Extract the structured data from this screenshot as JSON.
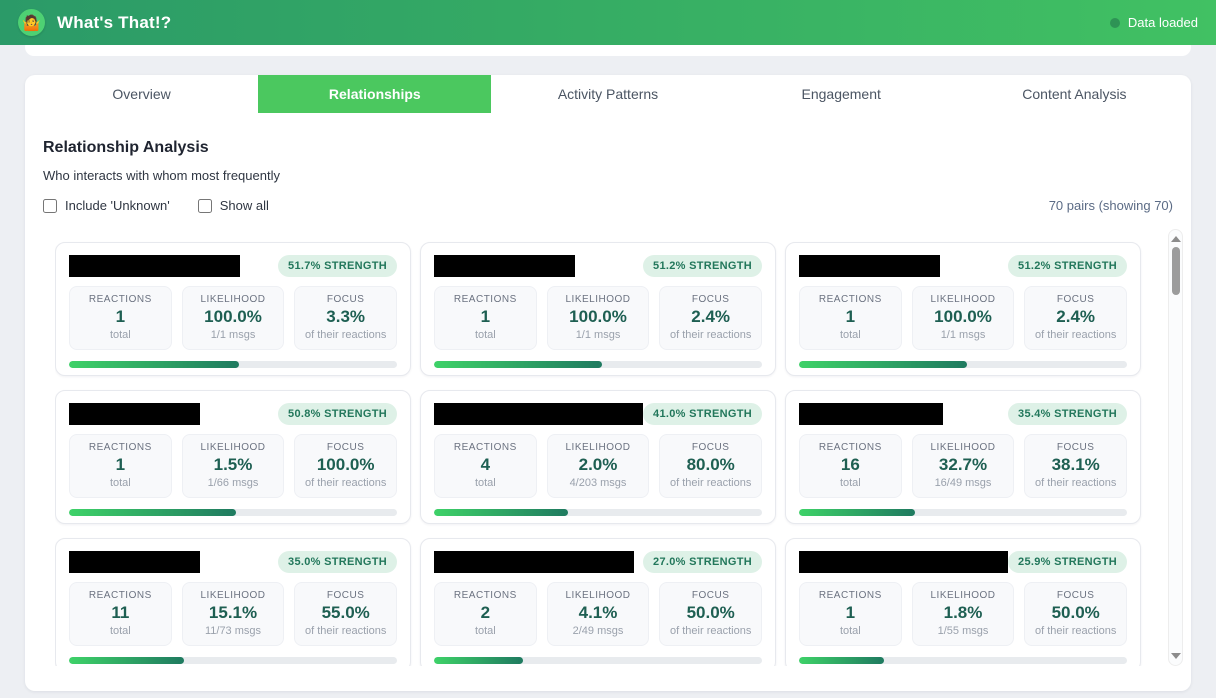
{
  "header": {
    "title": "What's That!?",
    "logo_emoji": "🤷",
    "status": "Data loaded"
  },
  "tabs": [
    {
      "label": "Overview"
    },
    {
      "label": "Relationships",
      "active": true
    },
    {
      "label": "Activity Patterns"
    },
    {
      "label": "Engagement"
    },
    {
      "label": "Content Analysis"
    }
  ],
  "section": {
    "title": "Relationship Analysis",
    "subtitle": "Who interacts with whom most frequently",
    "checkbox_unknown_label": "Include 'Unknown'",
    "checkbox_show_all_label": "Show all",
    "pair_count": "70 pairs (showing 70)"
  },
  "stat_labels": {
    "reactions": "REACTIONS",
    "likelihood": "LIKELIHOOD",
    "focus": "FOCUS"
  },
  "cards": [
    {
      "strength_label": "51.7% STRENGTH",
      "strength_pct": 51.7,
      "name_width_pct": 52,
      "reactions_value": "1",
      "reactions_sub": "total",
      "likelihood_value": "100.0%",
      "likelihood_sub": "1/1 msgs",
      "focus_value": "3.3%",
      "focus_sub": "of their reactions"
    },
    {
      "strength_label": "51.2% STRENGTH",
      "strength_pct": 51.2,
      "name_width_pct": 43,
      "reactions_value": "1",
      "reactions_sub": "total",
      "likelihood_value": "100.0%",
      "likelihood_sub": "1/1 msgs",
      "focus_value": "2.4%",
      "focus_sub": "of their reactions"
    },
    {
      "strength_label": "51.2% STRENGTH",
      "strength_pct": 51.2,
      "name_width_pct": 43,
      "reactions_value": "1",
      "reactions_sub": "total",
      "likelihood_value": "100.0%",
      "likelihood_sub": "1/1 msgs",
      "focus_value": "2.4%",
      "focus_sub": "of their reactions"
    },
    {
      "strength_label": "50.8% STRENGTH",
      "strength_pct": 50.8,
      "name_width_pct": 40,
      "reactions_value": "1",
      "reactions_sub": "total",
      "likelihood_value": "1.5%",
      "likelihood_sub": "1/66 msgs",
      "focus_value": "100.0%",
      "focus_sub": "of their reactions"
    },
    {
      "strength_label": "41.0% STRENGTH",
      "strength_pct": 41.0,
      "name_width_pct": 67,
      "reactions_value": "4",
      "reactions_sub": "total",
      "likelihood_value": "2.0%",
      "likelihood_sub": "4/203 msgs",
      "focus_value": "80.0%",
      "focus_sub": "of their reactions"
    },
    {
      "strength_label": "35.4% STRENGTH",
      "strength_pct": 35.4,
      "name_width_pct": 44,
      "reactions_value": "16",
      "reactions_sub": "total",
      "likelihood_value": "32.7%",
      "likelihood_sub": "16/49 msgs",
      "focus_value": "38.1%",
      "focus_sub": "of their reactions"
    },
    {
      "strength_label": "35.0% STRENGTH",
      "strength_pct": 35.0,
      "name_width_pct": 40,
      "reactions_value": "11",
      "reactions_sub": "total",
      "likelihood_value": "15.1%",
      "likelihood_sub": "11/73 msgs",
      "focus_value": "55.0%",
      "focus_sub": "of their reactions"
    },
    {
      "strength_label": "27.0% STRENGTH",
      "strength_pct": 27.0,
      "name_width_pct": 61,
      "reactions_value": "2",
      "reactions_sub": "total",
      "likelihood_value": "4.1%",
      "likelihood_sub": "2/49 msgs",
      "focus_value": "50.0%",
      "focus_sub": "of their reactions"
    },
    {
      "strength_label": "25.9% STRENGTH",
      "strength_pct": 25.9,
      "name_width_pct": 67,
      "reactions_value": "1",
      "reactions_sub": "total",
      "likelihood_value": "1.8%",
      "likelihood_sub": "1/55 msgs",
      "focus_value": "50.0%",
      "focus_sub": "of their reactions"
    }
  ],
  "colors": {
    "header_gradient_start": "#2b9a68",
    "header_gradient_end": "#41c163",
    "accent_green": "#4bc85f",
    "badge_bg": "#def1e7",
    "badge_text": "#22775b",
    "stat_value_teal": "#1e5f52",
    "progress_start": "#3ed268",
    "progress_end": "#1f7a60",
    "status_dot": "#2e9355",
    "page_bg": "#edeff3"
  }
}
